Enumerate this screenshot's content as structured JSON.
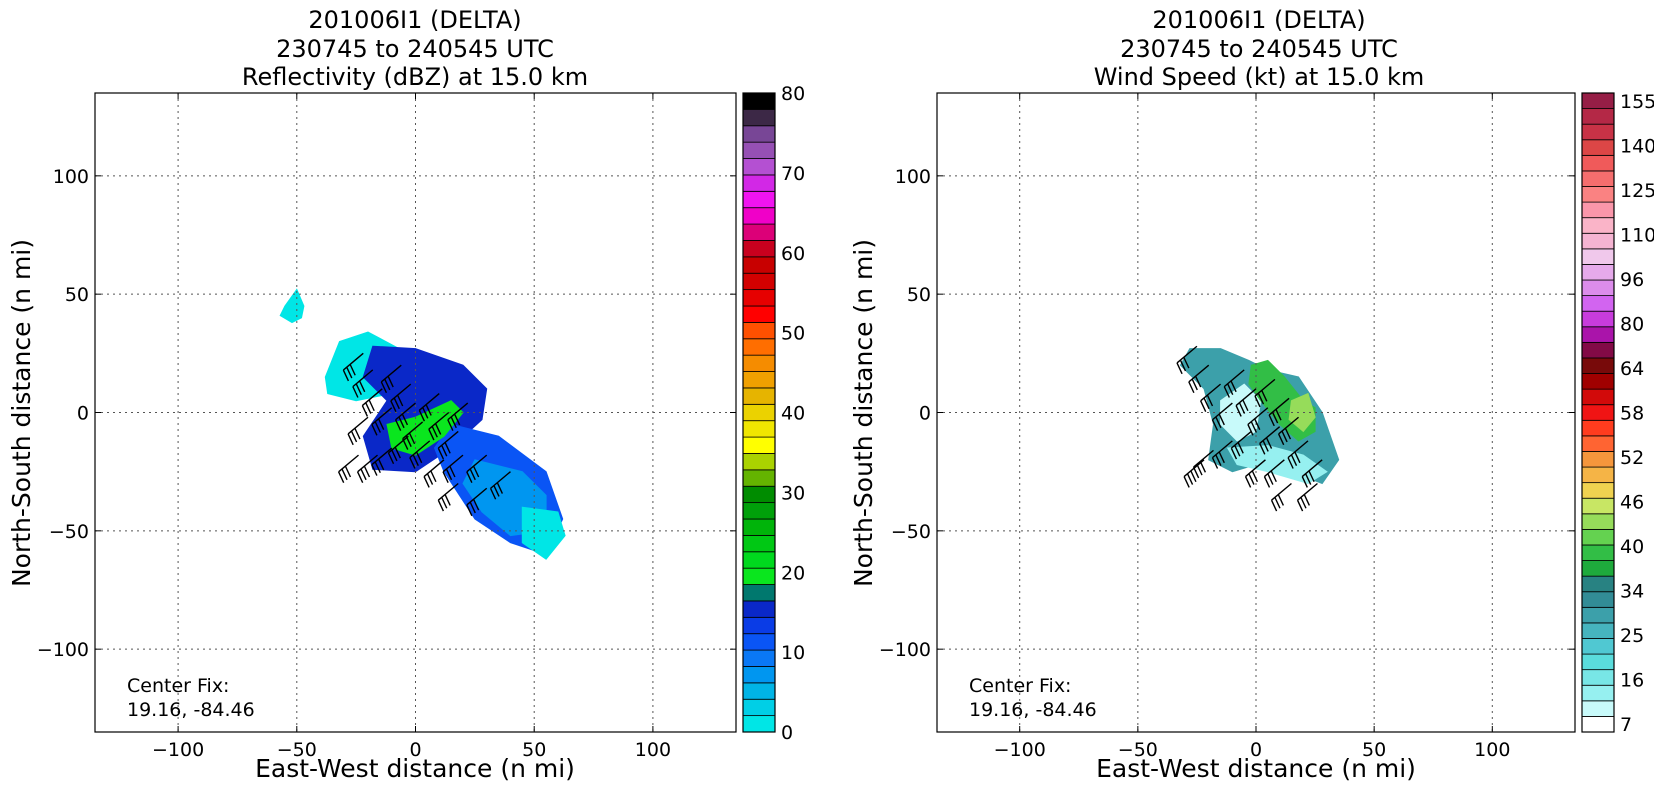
{
  "chart_data": [
    {
      "type": "heatmap",
      "title": [
        "201006I1 (DELTA)",
        "230745 to 240545 UTC",
        "Reflectivity (dBZ) at 15.0 km"
      ],
      "xlabel": "East-West distance (n mi)",
      "ylabel": "North-South distance (n mi)",
      "xlim": [
        -135,
        135
      ],
      "ylim": [
        -135,
        135
      ],
      "xticks": [
        -100,
        -50,
        0,
        50,
        100
      ],
      "yticks": [
        -100,
        -50,
        0,
        50,
        100
      ],
      "xtick_labels": [
        "−100",
        "−50",
        "0",
        "50",
        "100"
      ],
      "ytick_labels": [
        "−100",
        "−50",
        "0",
        "50",
        "100"
      ],
      "grid": true,
      "annotation": [
        "Center Fix:",
        "19.16, -84.46"
      ],
      "colorbar": {
        "min": 0,
        "max": 80,
        "ticks": [
          0,
          10,
          20,
          30,
          40,
          50,
          60,
          70,
          80
        ],
        "tick_labels": [
          "0",
          "10",
          "20",
          "30",
          "40",
          "50",
          "60",
          "70",
          "80"
        ],
        "colors": [
          "#00e6e6",
          "#00cfe6",
          "#00b4e6",
          "#0096f0",
          "#0a78f5",
          "#0a55f5",
          "#0a3ce6",
          "#0a28c8",
          "#00786e",
          "#0ae61e",
          "#00d91e",
          "#00c814",
          "#00b40a",
          "#00a00a",
          "#008c00",
          "#64b400",
          "#aad200",
          "#ffff00",
          "#f0e600",
          "#ebd200",
          "#e6b400",
          "#f0a000",
          "#f58c00",
          "#ff6e00",
          "#ff5000",
          "#ff0000",
          "#e60000",
          "#d20000",
          "#c80000",
          "#c8001e",
          "#dc0078",
          "#f000c8",
          "#f014f0",
          "#d228e6",
          "#b450d2",
          "#9650b4",
          "#784696",
          "#3c2846",
          "#000000"
        ]
      },
      "field": {
        "color": "#0a55f5",
        "regions": [
          {
            "color": "#00e6e6",
            "points": [
              [
                -55,
                45
              ],
              [
                -50,
                52
              ],
              [
                -47,
                45
              ],
              [
                -48,
                40
              ],
              [
                -52,
                38
              ],
              [
                -57,
                41
              ]
            ]
          },
          {
            "color": "#00e6e6",
            "points": [
              [
                -38,
                15
              ],
              [
                -32,
                30
              ],
              [
                -20,
                34
              ],
              [
                -5,
                26
              ],
              [
                0,
                18
              ],
              [
                -10,
                8
              ],
              [
                -25,
                5
              ],
              [
                -37,
                8
              ]
            ]
          },
          {
            "color": "#0a28c8",
            "points": [
              [
                -18,
                28
              ],
              [
                0,
                27
              ],
              [
                20,
                20
              ],
              [
                30,
                10
              ],
              [
                28,
                -3
              ],
              [
                15,
                -15
              ],
              [
                0,
                -25
              ],
              [
                -18,
                -24
              ],
              [
                -22,
                -10
              ],
              [
                -12,
                5
              ],
              [
                -22,
                15
              ]
            ]
          },
          {
            "color": "#0a55f5",
            "points": [
              [
                15,
                -5
              ],
              [
                35,
                -10
              ],
              [
                55,
                -25
              ],
              [
                62,
                -45
              ],
              [
                55,
                -60
              ],
              [
                40,
                -55
              ],
              [
                25,
                -45
              ],
              [
                12,
                -25
              ],
              [
                8,
                -15
              ]
            ]
          },
          {
            "color": "#0096f0",
            "points": [
              [
                25,
                -20
              ],
              [
                45,
                -25
              ],
              [
                55,
                -35
              ],
              [
                55,
                -50
              ],
              [
                40,
                -52
              ],
              [
                28,
                -42
              ],
              [
                20,
                -30
              ]
            ]
          },
          {
            "color": "#00e6e6",
            "points": [
              [
                45,
                -40
              ],
              [
                60,
                -42
              ],
              [
                63,
                -52
              ],
              [
                55,
                -62
              ],
              [
                45,
                -55
              ]
            ]
          },
          {
            "color": "#0ae61e",
            "points": [
              [
                -12,
                -5
              ],
              [
                0,
                -2
              ],
              [
                15,
                5
              ],
              [
                20,
                0
              ],
              [
                12,
                -10
              ],
              [
                0,
                -18
              ],
              [
                -10,
                -15
              ]
            ]
          }
        ]
      },
      "barbs": [
        [
          -22,
          25,
          25
        ],
        [
          -18,
          18,
          30
        ],
        [
          -14,
          10,
          30
        ],
        [
          -10,
          2,
          25
        ],
        [
          -6,
          20,
          25
        ],
        [
          -2,
          12,
          30
        ],
        [
          0,
          4,
          25
        ],
        [
          3,
          -4,
          30
        ],
        [
          6,
          -12,
          30
        ],
        [
          -3,
          -10,
          25
        ],
        [
          -10,
          -15,
          30
        ],
        [
          -16,
          -18,
          25
        ],
        [
          -20,
          -2,
          25
        ],
        [
          10,
          8,
          30
        ],
        [
          14,
          0,
          30
        ],
        [
          18,
          -8,
          25
        ],
        [
          20,
          -18,
          25
        ],
        [
          30,
          -18,
          30
        ],
        [
          12,
          -20,
          30
        ],
        [
          -24,
          -18,
          30
        ],
        [
          30,
          -32,
          25
        ],
        [
          18,
          -30,
          25
        ],
        [
          40,
          -25,
          25
        ],
        [
          22,
          4,
          25
        ]
      ]
    },
    {
      "type": "heatmap",
      "title": [
        "201006I1 (DELTA)",
        "230745 to 240545 UTC",
        "Wind Speed (kt) at 15.0 km"
      ],
      "xlabel": "East-West distance (n mi)",
      "ylabel": "North-South distance (n mi)",
      "xlim": [
        -135,
        135
      ],
      "ylim": [
        -135,
        135
      ],
      "xticks": [
        -100,
        -50,
        0,
        50,
        100
      ],
      "yticks": [
        -100,
        -50,
        0,
        50,
        100
      ],
      "xtick_labels": [
        "−100",
        "−50",
        "0",
        "50",
        "100"
      ],
      "ytick_labels": [
        "−100",
        "−50",
        "0",
        "50",
        "100"
      ],
      "grid": true,
      "annotation": [
        "Center Fix:",
        "19.16, -84.46"
      ],
      "colorbar": {
        "labels": [
          "7",
          "16",
          "25",
          "34",
          "40",
          "46",
          "52",
          "58",
          "64",
          "80",
          "96",
          "110",
          "125",
          "140",
          "155"
        ],
        "colors": [
          "#ffffff",
          "#c8fafa",
          "#96f0f0",
          "#78e6e6",
          "#5adcdc",
          "#50c8d2",
          "#46b4be",
          "#3ca0aa",
          "#328c96",
          "#288282",
          "#1eaa3c",
          "#32be46",
          "#64d250",
          "#96dc5a",
          "#c8e664",
          "#f0d250",
          "#f5b446",
          "#f5963c",
          "#ff6432",
          "#ff3c1e",
          "#f01414",
          "#d20a0a",
          "#a00000",
          "#780a0a",
          "#820a46",
          "#aa14aa",
          "#c83cdc",
          "#d264f0",
          "#dc8ceb",
          "#e6aaeb",
          "#f0c8eb",
          "#f5b4d2",
          "#fab4c8",
          "#fa96aa",
          "#fa8282",
          "#f56e6e",
          "#f05a5a",
          "#dc4646",
          "#c83246",
          "#b42846",
          "#961e46"
        ]
      },
      "field": {
        "color": "#78e6e6",
        "regions": [
          {
            "color": "#3ca0aa",
            "points": [
              [
                -32,
                20
              ],
              [
                -28,
                27
              ],
              [
                -15,
                27
              ],
              [
                -3,
                22
              ],
              [
                5,
                18
              ],
              [
                18,
                15
              ],
              [
                28,
                0
              ],
              [
                35,
                -20
              ],
              [
                28,
                -30
              ],
              [
                15,
                -25
              ],
              [
                0,
                -22
              ],
              [
                -10,
                -25
              ],
              [
                -20,
                -20
              ],
              [
                -18,
                -5
              ],
              [
                -22,
                10
              ]
            ]
          },
          {
            "color": "#c8fafa",
            "points": [
              [
                -15,
                5
              ],
              [
                -5,
                12
              ],
              [
                2,
                5
              ],
              [
                0,
                -8
              ],
              [
                -8,
                -12
              ],
              [
                -15,
                -5
              ]
            ]
          },
          {
            "color": "#96f0f0",
            "points": [
              [
                -12,
                -15
              ],
              [
                5,
                -14
              ],
              [
                20,
                -18
              ],
              [
                30,
                -25
              ],
              [
                22,
                -30
              ],
              [
                5,
                -25
              ],
              [
                -8,
                -22
              ]
            ]
          },
          {
            "color": "#32be46",
            "points": [
              [
                -2,
                20
              ],
              [
                5,
                22
              ],
              [
                12,
                15
              ],
              [
                20,
                5
              ],
              [
                25,
                2
              ],
              [
                25,
                -8
              ],
              [
                18,
                -12
              ],
              [
                10,
                -5
              ],
              [
                2,
                5
              ],
              [
                -3,
                12
              ]
            ]
          },
          {
            "color": "#96dc5a",
            "points": [
              [
                15,
                5
              ],
              [
                22,
                8
              ],
              [
                25,
                -2
              ],
              [
                20,
                -8
              ],
              [
                14,
                -3
              ]
            ]
          }
        ]
      },
      "barbs": [
        [
          -25,
          28,
          25
        ],
        [
          -20,
          20,
          30
        ],
        [
          -15,
          12,
          30
        ],
        [
          -10,
          4,
          25
        ],
        [
          -5,
          18,
          25
        ],
        [
          0,
          10,
          30
        ],
        [
          5,
          2,
          25
        ],
        [
          10,
          -6,
          30
        ],
        [
          -2,
          -8,
          25
        ],
        [
          -10,
          -12,
          30
        ],
        [
          -18,
          -16,
          25
        ],
        [
          8,
          14,
          30
        ],
        [
          14,
          6,
          30
        ],
        [
          18,
          -2,
          25
        ],
        [
          22,
          -12,
          25
        ],
        [
          28,
          -20,
          30
        ],
        [
          12,
          -20,
          30
        ],
        [
          -22,
          -20,
          25
        ],
        [
          26,
          -30,
          25
        ],
        [
          15,
          -30,
          25
        ],
        [
          4,
          -20,
          25
        ]
      ]
    }
  ]
}
